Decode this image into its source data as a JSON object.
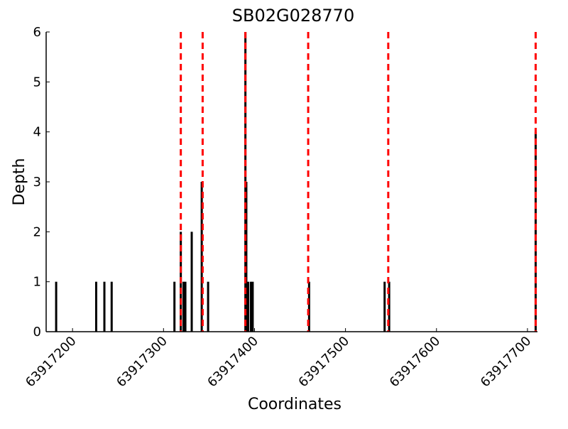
{
  "chart_data": {
    "type": "bar",
    "title": "SB02G028770",
    "x_label": "Coordinates",
    "y_label": "Depth",
    "x": [
      63917182,
      63917226,
      63917235,
      63917243,
      63917312,
      63917319,
      63917322,
      63917324,
      63917331,
      63917342,
      63917349,
      63917390,
      63917391,
      63917393,
      63917396,
      63917398,
      63917460,
      63917543,
      63917548,
      63917709
    ],
    "values": [
      1,
      1,
      1,
      1,
      1,
      2,
      1,
      1,
      2,
      3,
      1,
      6,
      3,
      1,
      1,
      1,
      1,
      1,
      1,
      4
    ],
    "color": "#000000",
    "reference_lines": {
      "x": [
        63917319,
        63917343,
        63917390,
        63917459,
        63917547,
        63917709
      ],
      "color": "#ff0000",
      "style": "dashed"
    },
    "xlim": [
      63917171,
      63917711
    ],
    "xticks": [
      63917200,
      63917300,
      63917400,
      63917500,
      63917600,
      63917700
    ],
    "ylim": [
      0,
      6
    ],
    "yticks": [
      0,
      1,
      2,
      3,
      4,
      5,
      6
    ]
  }
}
